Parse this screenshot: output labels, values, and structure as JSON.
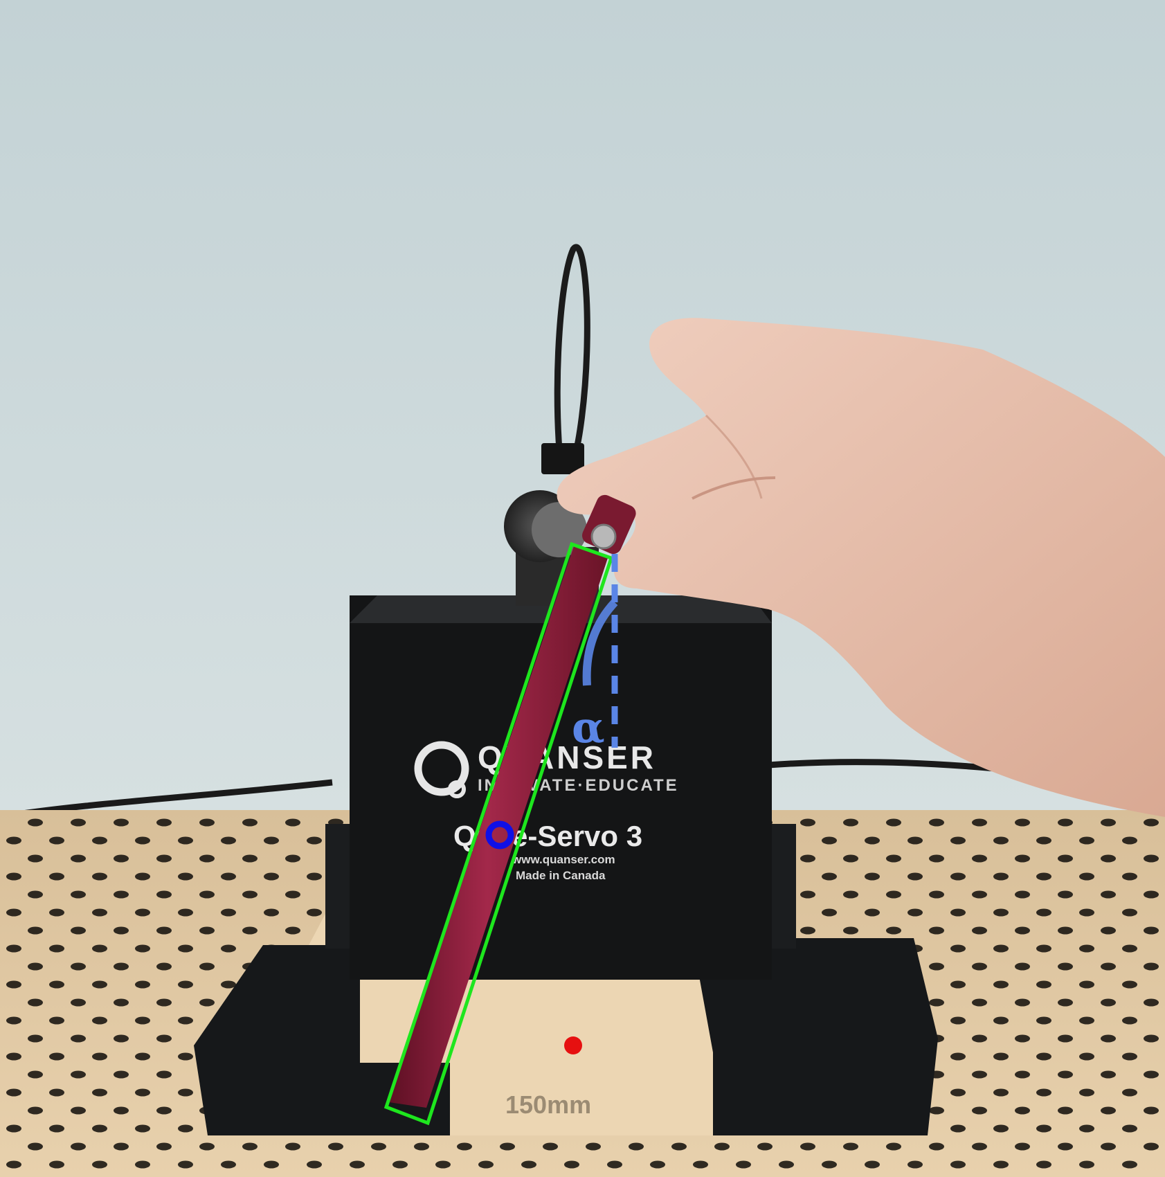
{
  "photo": {
    "device": {
      "brand": "QUANSER",
      "tagline": "INNOVATE·EDUCATE",
      "model": "Qube-Servo 3",
      "website": "www.quanser.com",
      "origin": "Made in Canada"
    },
    "platform_engraving": "150mm",
    "angle_label": "α",
    "colors": {
      "wall": "#cfdbdc",
      "board": "#e3c9a4",
      "device_body": "#141516",
      "pendulum": "#8e1f38",
      "bounding_box": "#1ee61e",
      "center_marker": "#1010e6",
      "angle_annotation": "#5a85e6",
      "pivot_marker": "#e61010"
    }
  }
}
